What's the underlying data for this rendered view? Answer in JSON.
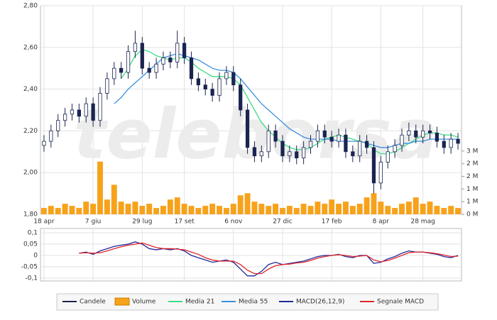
{
  "watermark": "teleborsa",
  "chart_data": [
    {
      "type": "candlestick",
      "categories": [
        "18 apr",
        null,
        null,
        null,
        null,
        null,
        null,
        "7 giu",
        null,
        null,
        null,
        null,
        null,
        null,
        "29 lug",
        null,
        null,
        null,
        null,
        null,
        "17 set",
        null,
        null,
        null,
        null,
        null,
        null,
        "6 nov",
        null,
        null,
        null,
        null,
        null,
        null,
        "27 dic",
        null,
        null,
        null,
        null,
        null,
        null,
        "17 feb",
        null,
        null,
        null,
        null,
        null,
        null,
        "8 apr",
        null,
        null,
        null,
        null,
        null,
        "28 mag",
        null,
        null,
        null,
        null,
        null
      ],
      "candles": {
        "name": "Candele",
        "color": "#1b2450",
        "open": [
          2.13,
          2.15,
          2.2,
          2.25,
          2.28,
          2.3,
          2.27,
          2.33,
          2.25,
          2.38,
          2.45,
          2.5,
          2.48,
          2.58,
          2.62,
          2.5,
          2.48,
          2.52,
          2.55,
          2.53,
          2.62,
          2.55,
          2.45,
          2.42,
          2.4,
          2.37,
          2.45,
          2.48,
          2.42,
          2.3,
          2.12,
          2.08,
          2.1,
          2.2,
          2.15,
          2.08,
          2.1,
          2.07,
          2.12,
          2.15,
          2.2,
          2.17,
          2.15,
          2.18,
          2.1,
          2.08,
          2.15,
          2.12,
          1.95,
          2.05,
          2.1,
          2.13,
          2.18,
          2.2,
          2.17,
          2.2,
          2.19,
          2.15,
          2.12,
          2.16
        ],
        "high": [
          2.18,
          2.23,
          2.28,
          2.31,
          2.33,
          2.33,
          2.36,
          2.36,
          2.41,
          2.48,
          2.53,
          2.53,
          2.61,
          2.68,
          2.65,
          2.53,
          2.55,
          2.58,
          2.58,
          2.68,
          2.65,
          2.58,
          2.48,
          2.45,
          2.43,
          2.48,
          2.51,
          2.51,
          2.45,
          2.33,
          2.15,
          2.13,
          2.23,
          2.23,
          2.18,
          2.13,
          2.13,
          2.15,
          2.18,
          2.23,
          2.23,
          2.2,
          2.21,
          2.21,
          2.13,
          2.18,
          2.18,
          2.15,
          2.08,
          2.13,
          2.16,
          2.21,
          2.24,
          2.23,
          2.23,
          2.23,
          2.22,
          2.18,
          2.19,
          2.19
        ],
        "low": [
          2.1,
          2.12,
          2.17,
          2.22,
          2.25,
          2.24,
          2.24,
          2.22,
          2.22,
          2.35,
          2.42,
          2.45,
          2.45,
          2.55,
          2.47,
          2.45,
          2.45,
          2.49,
          2.5,
          2.5,
          2.52,
          2.42,
          2.39,
          2.37,
          2.34,
          2.34,
          2.42,
          2.39,
          2.27,
          2.09,
          2.05,
          2.05,
          2.07,
          2.12,
          2.05,
          2.05,
          2.04,
          2.04,
          2.09,
          2.12,
          2.14,
          2.12,
          2.12,
          2.07,
          2.05,
          2.05,
          2.09,
          1.9,
          1.92,
          2.02,
          2.07,
          2.1,
          2.15,
          2.14,
          2.14,
          2.16,
          2.12,
          2.09,
          2.09,
          2.11
        ],
        "close": [
          2.15,
          2.2,
          2.25,
          2.28,
          2.3,
          2.27,
          2.33,
          2.25,
          2.38,
          2.45,
          2.5,
          2.48,
          2.58,
          2.62,
          2.5,
          2.48,
          2.52,
          2.55,
          2.53,
          2.62,
          2.55,
          2.45,
          2.42,
          2.4,
          2.37,
          2.45,
          2.48,
          2.42,
          2.3,
          2.12,
          2.08,
          2.1,
          2.2,
          2.15,
          2.08,
          2.1,
          2.07,
          2.12,
          2.15,
          2.2,
          2.17,
          2.15,
          2.18,
          2.1,
          2.08,
          2.15,
          2.12,
          1.95,
          2.05,
          2.1,
          2.13,
          2.18,
          2.2,
          2.17,
          2.2,
          2.19,
          2.15,
          2.12,
          2.16,
          2.14
        ]
      },
      "volume": {
        "name": "Volume",
        "color": "#f7a21b",
        "axis": "y2",
        "values": [
          0.3,
          0.4,
          0.3,
          0.5,
          0.4,
          0.3,
          0.6,
          0.5,
          2.5,
          0.7,
          1.4,
          0.6,
          0.5,
          0.6,
          0.4,
          0.5,
          0.3,
          0.4,
          0.7,
          0.8,
          0.5,
          0.4,
          0.3,
          0.4,
          0.5,
          0.4,
          0.3,
          0.5,
          0.9,
          1.0,
          0.6,
          0.5,
          0.4,
          0.5,
          0.3,
          0.4,
          0.3,
          0.5,
          0.4,
          0.6,
          0.5,
          0.7,
          0.5,
          0.6,
          0.4,
          0.5,
          0.8,
          1.0,
          0.6,
          0.4,
          0.3,
          0.5,
          0.6,
          0.8,
          0.5,
          0.6,
          0.4,
          0.3,
          0.4,
          0.3
        ]
      },
      "series": [
        {
          "name": "Media 21",
          "color": "#3ddc84",
          "values": [
            null,
            null,
            null,
            null,
            null,
            null,
            null,
            null,
            null,
            null,
            null,
            2.45,
            2.5,
            2.56,
            2.59,
            2.58,
            2.56,
            2.55,
            2.54,
            2.55,
            2.55,
            2.53,
            2.5,
            2.48,
            2.46,
            2.46,
            2.46,
            2.45,
            2.42,
            2.36,
            2.3,
            2.24,
            2.2,
            2.17,
            2.14,
            2.12,
            2.11,
            2.11,
            2.12,
            2.14,
            2.16,
            2.17,
            2.18,
            2.17,
            2.16,
            2.15,
            2.14,
            2.11,
            2.09,
            2.09,
            2.1,
            2.12,
            2.14,
            2.16,
            2.18,
            2.19,
            2.19,
            2.18,
            2.18,
            2.17
          ]
        },
        {
          "name": "Media 55",
          "color": "#3b8fe0",
          "values": [
            null,
            null,
            null,
            null,
            null,
            null,
            null,
            null,
            null,
            null,
            2.33,
            2.36,
            2.4,
            2.43,
            2.46,
            2.49,
            2.52,
            2.55,
            2.56,
            2.57,
            2.56,
            2.55,
            2.54,
            2.52,
            2.5,
            2.49,
            2.49,
            2.48,
            2.45,
            2.41,
            2.37,
            2.33,
            2.3,
            2.27,
            2.24,
            2.21,
            2.19,
            2.17,
            2.16,
            2.16,
            2.16,
            2.16,
            2.15,
            2.15,
            2.15,
            2.15,
            2.14,
            2.13,
            2.12,
            2.12,
            2.13,
            2.14,
            2.14,
            2.15,
            2.15,
            2.16,
            2.16,
            2.16,
            2.16,
            2.16
          ]
        }
      ],
      "ylim": [
        1.8,
        2.8
      ],
      "yticks": [
        {
          "value": 1.8,
          "label": "1,80"
        },
        {
          "value": 2.0,
          "label": "2,00"
        },
        {
          "value": 2.2,
          "label": "2,20"
        },
        {
          "value": 2.4,
          "label": "2,40"
        },
        {
          "value": 2.6,
          "label": "2,60"
        },
        {
          "value": 2.8,
          "label": "2,80"
        }
      ],
      "y2lim": [
        0,
        9.9
      ],
      "y2ticks": [
        {
          "value": 0,
          "label": "0 M"
        },
        {
          "value": 0.6,
          "label": "1 M"
        },
        {
          "value": 1.2,
          "label": "1 M"
        },
        {
          "value": 1.8,
          "label": "2 M"
        },
        {
          "value": 2.4,
          "label": "2 M"
        },
        {
          "value": 3.0,
          "label": "3 M"
        }
      ],
      "grid": true
    },
    {
      "type": "line",
      "series": [
        {
          "name": "MACD(26,12,9)",
          "color": "#1f2a9a",
          "values": [
            null,
            null,
            null,
            null,
            null,
            0.01,
            0.015,
            0.005,
            0.02,
            0.03,
            0.04,
            0.045,
            0.05,
            0.06,
            0.05,
            0.03,
            0.025,
            0.03,
            0.025,
            0.03,
            0.02,
            0.0,
            -0.01,
            -0.02,
            -0.03,
            -0.025,
            -0.02,
            -0.03,
            -0.06,
            -0.09,
            -0.09,
            -0.07,
            -0.04,
            -0.03,
            -0.04,
            -0.035,
            -0.03,
            -0.025,
            -0.015,
            -0.005,
            0.0,
            0.0,
            0.005,
            -0.005,
            -0.01,
            0.0,
            0.0,
            -0.035,
            -0.03,
            -0.015,
            -0.005,
            0.01,
            0.02,
            0.015,
            0.015,
            0.01,
            0.005,
            -0.005,
            -0.01,
            0.0
          ]
        },
        {
          "name": "Segnale MACD",
          "color": "#e0262b",
          "values": [
            null,
            null,
            null,
            null,
            null,
            0.01,
            0.012,
            0.01,
            0.012,
            0.02,
            0.03,
            0.038,
            0.045,
            0.05,
            0.055,
            0.045,
            0.035,
            0.03,
            0.03,
            0.028,
            0.025,
            0.015,
            0.005,
            -0.01,
            -0.02,
            -0.025,
            -0.025,
            -0.025,
            -0.04,
            -0.065,
            -0.08,
            -0.08,
            -0.06,
            -0.045,
            -0.04,
            -0.038,
            -0.033,
            -0.03,
            -0.022,
            -0.012,
            -0.005,
            0.0,
            0.003,
            0.0,
            -0.005,
            -0.003,
            0.0,
            -0.02,
            -0.028,
            -0.022,
            -0.012,
            0.0,
            0.012,
            0.015,
            0.015,
            0.012,
            0.008,
            0.002,
            -0.005,
            -0.003
          ]
        }
      ],
      "ylim": [
        -0.1125,
        0.119
      ],
      "yticks": [
        {
          "value": -0.1,
          "label": "-0,1"
        },
        {
          "value": -0.05,
          "label": "-0,05"
        },
        0,
        {
          "value": 0.05,
          "label": "0,05"
        },
        {
          "value": 0.1,
          "label": "0,1"
        }
      ],
      "grid": true
    }
  ]
}
